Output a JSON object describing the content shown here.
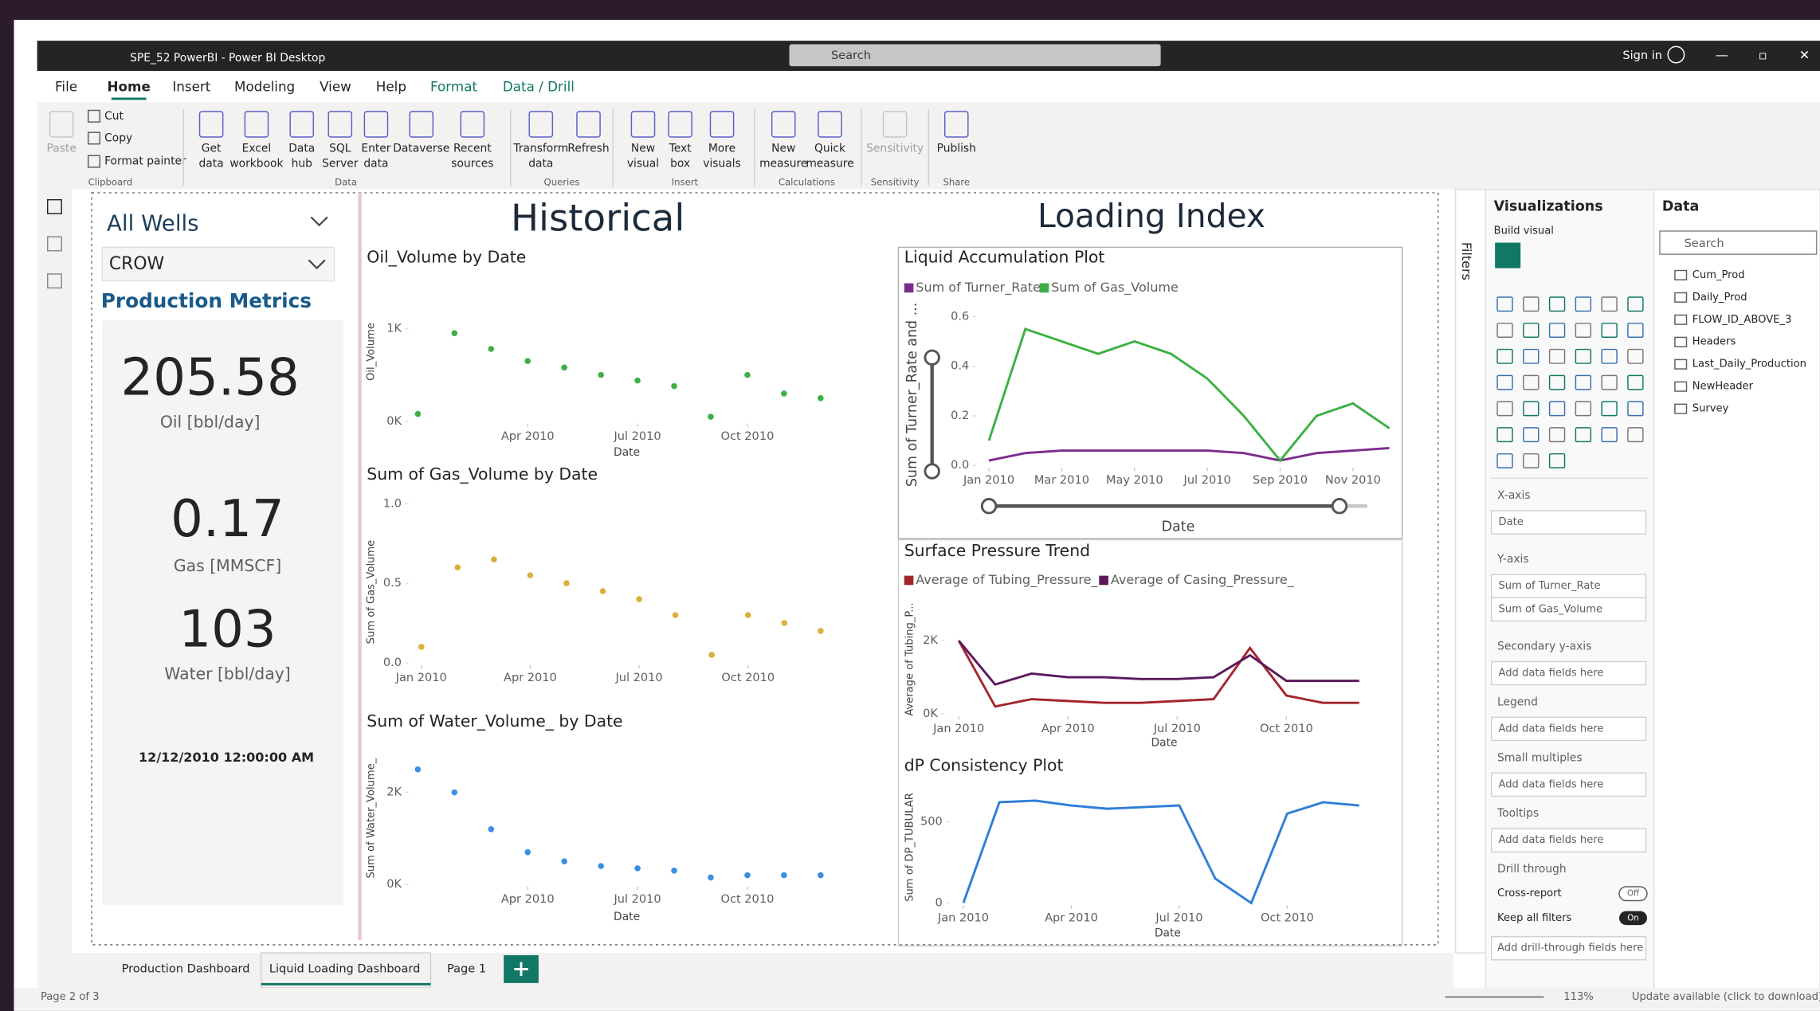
{
  "window": {
    "title": "SPE_52 PowerBI - Power BI Desktop",
    "search": "Search",
    "sign_in": "Sign in"
  },
  "menu": [
    "File",
    "Home",
    "Insert",
    "Modeling",
    "View",
    "Help",
    "Format",
    "Data / Drill"
  ],
  "ribbon": {
    "buttons": [
      [
        "Paste"
      ],
      [
        "Cut"
      ],
      [
        "Copy"
      ],
      [
        "Format painter"
      ],
      [
        "Get",
        "data"
      ],
      [
        "Excel",
        "workbook"
      ],
      [
        "Data",
        "hub"
      ],
      [
        "SQL",
        "Server"
      ],
      [
        "Enter",
        "data"
      ],
      [
        "Dataverse"
      ],
      [
        "Recent",
        "sources"
      ],
      [
        "Transform",
        "data"
      ],
      [
        "Refresh"
      ],
      [
        "New",
        "visual"
      ],
      [
        "Text",
        "box"
      ],
      [
        "More",
        "visuals"
      ],
      [
        "New",
        "measure"
      ],
      [
        "Quick",
        "measure"
      ],
      [
        "Sensitivity"
      ],
      [
        "Publish"
      ]
    ],
    "groups": [
      "Clipboard",
      "Data",
      "Queries",
      "Insert",
      "Calculations",
      "Sensitivity",
      "Share"
    ]
  },
  "report": {
    "slicer": {
      "title": "All Wells",
      "value": "CROW"
    },
    "metrics_title": "Production Metrics",
    "cards": [
      {
        "value": "205.58",
        "label": "Oil [bbl/day]"
      },
      {
        "value": "0.17",
        "label": "Gas [MMSCF]"
      },
      {
        "value": "103",
        "label": "Water [bbl/day]"
      }
    ],
    "date": "12/12/2010 12:00:00 AM",
    "headers": [
      "Historical",
      "Loading Index"
    ]
  },
  "visuals": [
    {
      "type": "scatter",
      "title": "Oil_Volume by Date",
      "x_label": "Date",
      "y_label": "Oil_Volume",
      "x": [
        "2010-01",
        "2010-02",
        "2010-03",
        "2010-04",
        "2010-05",
        "2010-06",
        "2010-07",
        "2010-08",
        "2010-09",
        "2010-10",
        "2010-11",
        "2010-12"
      ],
      "xlim": [
        "2010-01",
        "2010-12"
      ],
      "ylim": [
        0,
        1000
      ],
      "xticks": [
        {
          "value": "2010-04",
          "label": "Apr 2010"
        },
        {
          "value": "2010-07",
          "label": "Jul 2010"
        },
        {
          "value": "2010-10",
          "label": "Oct 2010"
        }
      ],
      "yticks": [
        {
          "value": 0,
          "label": "0K"
        },
        {
          "value": 1000,
          "label": "1K"
        }
      ],
      "series": [
        {
          "color": "#3cb043",
          "values": [
            80,
            950,
            780,
            650,
            580,
            500,
            440,
            380,
            50,
            500,
            300,
            250
          ]
        }
      ]
    },
    {
      "type": "scatter",
      "title": "Sum of Gas_Volume by Date",
      "y_label": "Sum of Gas_Volume",
      "x": [
        "2010-01",
        "2010-02",
        "2010-03",
        "2010-04",
        "2010-05",
        "2010-06",
        "2010-07",
        "2010-08",
        "2010-09",
        "2010-10",
        "2010-11",
        "2010-12"
      ],
      "xlim": [
        "2010-01",
        "2010-12"
      ],
      "ylim": [
        0,
        1
      ],
      "xticks": [
        {
          "value": "2010-01",
          "label": "Jan 2010"
        },
        {
          "value": "2010-04",
          "label": "Apr 2010"
        },
        {
          "value": "2010-07",
          "label": "Jul 2010"
        },
        {
          "value": "2010-10",
          "label": "Oct 2010"
        }
      ],
      "yticks": [
        {
          "value": 0,
          "label": "0.0"
        },
        0.5,
        {
          "value": 1,
          "label": "1.0"
        }
      ],
      "series": [
        {
          "color": "#d9b23a",
          "values": [
            0.1,
            0.6,
            0.65,
            0.55,
            0.5,
            0.45,
            0.4,
            0.3,
            0.05,
            0.3,
            0.25,
            0.2
          ]
        }
      ]
    },
    {
      "type": "scatter",
      "title": "Sum of Water_Volume_ by Date",
      "x_label": "Date",
      "y_label": "Sum of Water_Volume_",
      "x": [
        "2010-01",
        "2010-02",
        "2010-03",
        "2010-04",
        "2010-05",
        "2010-06",
        "2010-07",
        "2010-08",
        "2010-09",
        "2010-10",
        "2010-11",
        "2010-12"
      ],
      "xlim": [
        "2010-01",
        "2010-12"
      ],
      "ylim": [
        0,
        2800
      ],
      "xticks": [
        {
          "value": "2010-04",
          "label": "Apr 2010"
        },
        {
          "value": "2010-07",
          "label": "Jul 2010"
        },
        {
          "value": "2010-10",
          "label": "Oct 2010"
        }
      ],
      "yticks": [
        {
          "value": 0,
          "label": "0K"
        },
        {
          "value": 2000,
          "label": "2K"
        }
      ],
      "series": [
        {
          "color": "#3a8ee6",
          "values": [
            2500,
            2000,
            1200,
            700,
            500,
            400,
            350,
            300,
            150,
            200,
            200,
            200
          ]
        }
      ]
    },
    {
      "type": "line",
      "title": "Liquid Accumulation Plot",
      "x_label": "Date",
      "y_label": "Sum of Turner_Rate and ...",
      "legend": true,
      "x": [
        "2010-01",
        "2010-02",
        "2010-03",
        "2010-04",
        "2010-05",
        "2010-06",
        "2010-07",
        "2010-08",
        "2010-09",
        "2010-10",
        "2010-11",
        "2010-12"
      ],
      "xlim": [
        "2010-01",
        "2010-12"
      ],
      "ylim": [
        0,
        0.65
      ],
      "xticks": [
        {
          "value": "2010-01",
          "label": "Jan 2010"
        },
        {
          "value": "2010-03",
          "label": "Mar 2010"
        },
        {
          "value": "2010-05",
          "label": "May 2010"
        },
        {
          "value": "2010-07",
          "label": "Jul 2010"
        },
        {
          "value": "2010-09",
          "label": "Sep 2010"
        },
        {
          "value": "2010-11",
          "label": "Nov 2010"
        }
      ],
      "yticks": [
        {
          "value": 0,
          "label": "0.0"
        },
        0.2,
        0.4,
        0.6
      ],
      "series": [
        {
          "name": "Sum of Turner_Rate",
          "color": "#7b2d8e",
          "values": [
            0.02,
            0.05,
            0.06,
            0.06,
            0.06,
            0.06,
            0.06,
            0.05,
            0.02,
            0.05,
            0.06,
            0.07
          ]
        },
        {
          "name": "Sum of Gas_Volume",
          "color": "#3cb043",
          "values": [
            0.1,
            0.55,
            0.5,
            0.45,
            0.5,
            0.45,
            0.35,
            0.2,
            0.02,
            0.2,
            0.25,
            0.15
          ]
        }
      ]
    },
    {
      "type": "line",
      "title": "Surface Pressure Trend",
      "x_label": "Date",
      "y_label": "Average of Tubing_P...",
      "legend": true,
      "x": [
        "2010-01",
        "2010-02",
        "2010-03",
        "2010-04",
        "2010-05",
        "2010-06",
        "2010-07",
        "2010-08",
        "2010-09",
        "2010-10",
        "2010-11",
        "2010-12"
      ],
      "xlim": [
        "2010-01",
        "2010-12"
      ],
      "ylim": [
        0,
        2600
      ],
      "xticks": [
        {
          "value": "2010-01",
          "label": "Jan 2010"
        },
        {
          "value": "2010-04",
          "label": "Apr 2010"
        },
        {
          "value": "2010-07",
          "label": "Jul 2010"
        },
        {
          "value": "2010-10",
          "label": "Oct 2010"
        }
      ],
      "yticks": [
        {
          "value": 0,
          "label": "0K"
        },
        {
          "value": 2000,
          "label": "2K"
        }
      ],
      "series": [
        {
          "name": "Average of Tubing_Pressure_",
          "color": "#a4262c",
          "values": [
            2000,
            200,
            400,
            350,
            300,
            300,
            350,
            400,
            1800,
            500,
            300,
            300
          ]
        },
        {
          "name": "Average of Casing_Pressure_",
          "color": "#5c1a5c",
          "values": [
            2000,
            800,
            1100,
            1000,
            1000,
            950,
            950,
            1000,
            1600,
            900,
            900,
            900
          ]
        }
      ]
    },
    {
      "type": "line",
      "title": "dP Consistency Plot",
      "x_label": "Date",
      "y_label": "Sum of DP_TUBULAR",
      "x": [
        "2010-01",
        "2010-02",
        "2010-03",
        "2010-04",
        "2010-05",
        "2010-06",
        "2010-07",
        "2010-08",
        "2010-09",
        "2010-10",
        "2010-11",
        "2010-12"
      ],
      "xlim": [
        "2010-01",
        "2010-12"
      ],
      "ylim": [
        0,
        700
      ],
      "xticks": [
        {
          "value": "2010-01",
          "label": "Jan 2010"
        },
        {
          "value": "2010-04",
          "label": "Apr 2010"
        },
        {
          "value": "2010-07",
          "label": "Jul 2010"
        },
        {
          "value": "2010-10",
          "label": "Oct 2010"
        }
      ],
      "yticks": [
        0,
        500
      ],
      "series": [
        {
          "color": "#2f7ed8",
          "values": [
            0,
            620,
            630,
            600,
            580,
            590,
            600,
            150,
            0,
            550,
            620,
            600
          ]
        }
      ]
    }
  ],
  "filters": "Filters",
  "visualizations": {
    "title": "Visualizations",
    "build": "Build visual",
    "x_axis": "X-axis",
    "x_field": "Date",
    "y_axis": "Y-axis",
    "y_fields": [
      "Sum of Turner_Rate",
      "Sum of Gas_Volume"
    ],
    "secondary": "Secondary y-axis",
    "legend": "Legend",
    "small_multiples": "Small multiples",
    "tooltips": "Tooltips",
    "placeholder": "Add data fields here",
    "drill_through": "Drill through",
    "cross_report": "Cross-report",
    "cross_report_state": "Off",
    "keep_filters": "Keep all filters",
    "keep_filters_state": "On",
    "drill_placeholder": "Add drill-through fields here"
  },
  "data_pane": {
    "title": "Data",
    "search": "Search",
    "tables": [
      "Cum_Prod",
      "Daily_Prod",
      "FLOW_ID_ABOVE_3",
      "Headers",
      "Last_Daily_Production",
      "NewHeader",
      "Survey"
    ]
  },
  "tabs": [
    "Production Dashboard",
    "Liquid Loading Dashboard",
    "Page 1"
  ],
  "status": {
    "page": "Page 2 of 3",
    "zoom": "113%",
    "update": "Update available (click to download)"
  }
}
